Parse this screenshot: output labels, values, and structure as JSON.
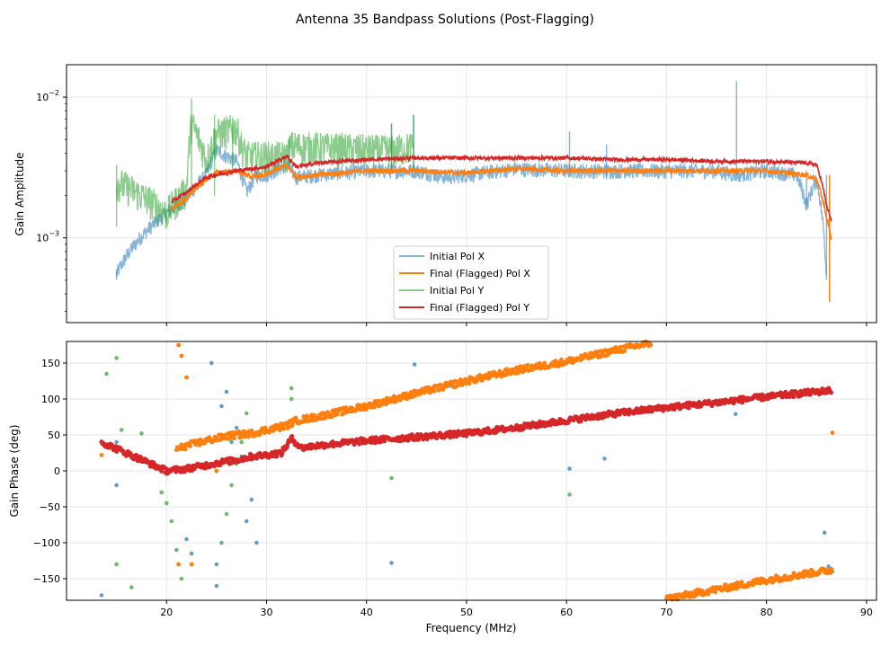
{
  "figure": {
    "title": "Antenna 35 Bandpass Solutions (Post-Flagging)"
  },
  "colors": {
    "pol_x_initial": "#1f77b4",
    "pol_x_final": "#ff7f0e",
    "pol_y_initial": "#2ca02c",
    "pol_y_final": "#d62728",
    "grid": "#e6e6e6"
  },
  "chart_data": [
    {
      "type": "line",
      "ylabel": "Gain Amplitude",
      "xlabel": "",
      "y_scale": "log",
      "xlim": [
        10,
        91
      ],
      "ylim": [
        0.00025,
        0.017
      ],
      "yticks": [
        {
          "value": 0.01,
          "base": "10",
          "exp": "−2"
        },
        {
          "value": 0.001,
          "base": "10",
          "exp": "−3"
        }
      ],
      "grid": true,
      "legend_position": "bottom-center",
      "series": [
        {
          "name": "Initial Pol X",
          "color_key": "pol_x_initial",
          "x": [
            15,
            20,
            22,
            24,
            25,
            26,
            27,
            28,
            29,
            30,
            32,
            33,
            35,
            40,
            45,
            48,
            50,
            55,
            60,
            65,
            70,
            75,
            77,
            80,
            83,
            84,
            85,
            86
          ],
          "y": [
            0.00055,
            0.0015,
            0.0019,
            0.0028,
            0.0042,
            0.0038,
            0.0035,
            0.0021,
            0.0028,
            0.0028,
            0.0033,
            0.0027,
            0.0028,
            0.003,
            0.003,
            0.0027,
            0.0028,
            0.0031,
            0.003,
            0.003,
            0.003,
            0.003,
            0.0028,
            0.003,
            0.0028,
            0.0017,
            0.0026,
            0.0005
          ]
        },
        {
          "name": "Final (Flagged) Pol X",
          "color_key": "pol_x_final",
          "x": [
            20.5,
            22,
            24,
            25,
            27,
            28.5,
            30,
            32,
            33,
            35,
            40,
            45,
            50,
            55,
            60,
            65,
            70,
            75,
            80,
            84,
            85,
            86,
            86.5
          ],
          "y": [
            0.0016,
            0.0019,
            0.0026,
            0.0029,
            0.003,
            0.0027,
            0.0028,
            0.0033,
            0.0027,
            0.0028,
            0.003,
            0.003,
            0.0029,
            0.0031,
            0.003,
            0.003,
            0.003,
            0.003,
            0.003,
            0.0028,
            0.0026,
            0.0014,
            0.00095
          ]
        },
        {
          "name": "Initial Pol Y",
          "color_key": "pol_y_initial",
          "x": [
            15,
            20,
            22,
            22.5,
            24,
            25,
            26,
            27,
            27.5,
            28,
            32,
            32.5,
            42.5,
            44.7
          ],
          "y": [
            0.0025,
            0.0015,
            0.0022,
            0.0065,
            0.0035,
            0.0055,
            0.0058,
            0.006,
            0.0045,
            0.0038,
            0.0038,
            0.0045,
            0.0042,
            0.0045
          ]
        },
        {
          "name": "Final (Flagged) Pol Y",
          "color_key": "pol_y_final",
          "x": [
            20.5,
            22,
            24,
            25,
            27,
            28.5,
            30,
            32,
            33,
            35,
            40,
            45,
            50,
            55,
            60,
            65,
            70,
            75,
            80,
            84,
            85,
            86,
            86.5
          ],
          "y": [
            0.0018,
            0.0021,
            0.0027,
            0.0028,
            0.003,
            0.0031,
            0.0032,
            0.0038,
            0.0032,
            0.0034,
            0.0036,
            0.0037,
            0.0037,
            0.0037,
            0.0037,
            0.0036,
            0.0036,
            0.0035,
            0.0035,
            0.0034,
            0.0033,
            0.0017,
            0.0013
          ]
        }
      ]
    },
    {
      "type": "scatter",
      "ylabel": "Gain Phase (deg)",
      "xlabel": "Frequency (MHz)",
      "xlim": [
        10,
        91
      ],
      "ylim": [
        -180,
        180
      ],
      "xticks": [
        20,
        30,
        40,
        50,
        60,
        70,
        80,
        90
      ],
      "yticks": [
        -150,
        -100,
        -50,
        0,
        50,
        100,
        150
      ],
      "grid": true,
      "series": [
        {
          "name": "Initial Pol X",
          "color_key": "pol_x_initial",
          "points": [
            [
              13.5,
              -173
            ],
            [
              15,
              -20
            ],
            [
              15,
              40
            ],
            [
              24.5,
              150
            ],
            [
              25,
              -130
            ],
            [
              25,
              -160
            ],
            [
              25.5,
              90
            ],
            [
              26,
              110
            ],
            [
              26.5,
              40
            ],
            [
              27,
              60
            ],
            [
              27.5,
              20
            ],
            [
              28,
              -70
            ],
            [
              28.5,
              -40
            ],
            [
              29,
              -100
            ],
            [
              44.8,
              148
            ],
            [
              42.5,
              -128
            ],
            [
              48.5,
              118
            ],
            [
              50,
              127
            ],
            [
              60.3,
              3
            ],
            [
              63.8,
              17
            ],
            [
              76.9,
              79
            ],
            [
              85.8,
              -86
            ],
            [
              86.2,
              -133
            ],
            [
              22,
              -95
            ],
            [
              22.5,
              -115
            ]
          ]
        },
        {
          "name": "Final (Flagged) Pol X",
          "color_key": "pol_x_final",
          "x": [
            21,
            22,
            24,
            25,
            26,
            27,
            28.5,
            30,
            32,
            33,
            35,
            40,
            45,
            50,
            55,
            60,
            65,
            68.5,
            70,
            75,
            80,
            84,
            86.5
          ],
          "y": [
            30,
            35,
            42,
            45,
            48,
            50,
            52,
            57,
            63,
            70,
            75,
            90,
            108,
            125,
            140,
            152,
            168,
            178,
            -178,
            -165,
            -152,
            -143,
            -138
          ]
        },
        {
          "name": "Initial Pol Y",
          "color_key": "pol_y_initial",
          "points": [
            [
              14,
              135
            ],
            [
              15,
              157
            ],
            [
              15,
              -130
            ],
            [
              15.5,
              57
            ],
            [
              16.5,
              -162
            ],
            [
              17.5,
              52
            ],
            [
              19.5,
              -30
            ],
            [
              20,
              -45
            ],
            [
              20.5,
              -70
            ],
            [
              21,
              -110
            ],
            [
              21.5,
              -150
            ],
            [
              25.5,
              -100
            ],
            [
              26,
              -60
            ],
            [
              26.5,
              -20
            ],
            [
              27,
              10
            ],
            [
              27.5,
              40
            ],
            [
              28,
              80
            ],
            [
              32.5,
              100
            ],
            [
              32.5,
              115
            ],
            [
              42.5,
              -10
            ],
            [
              60.3,
              -33
            ],
            [
              86.6,
              -140
            ]
          ]
        },
        {
          "name": "Final (Flagged) Pol Y",
          "color_key": "pol_y_final",
          "x": [
            13.5,
            20,
            22,
            24,
            25.5,
            27,
            28.5,
            30,
            31.5,
            32.5,
            33.5,
            35,
            40,
            45,
            50,
            55,
            60,
            65,
            70,
            75,
            80,
            85,
            86.5
          ],
          "y": [
            40,
            0,
            3,
            8,
            12,
            15,
            20,
            22,
            25,
            45,
            32,
            35,
            42,
            47,
            52,
            60,
            70,
            80,
            88,
            95,
            103,
            110,
            112
          ]
        }
      ]
    }
  ]
}
